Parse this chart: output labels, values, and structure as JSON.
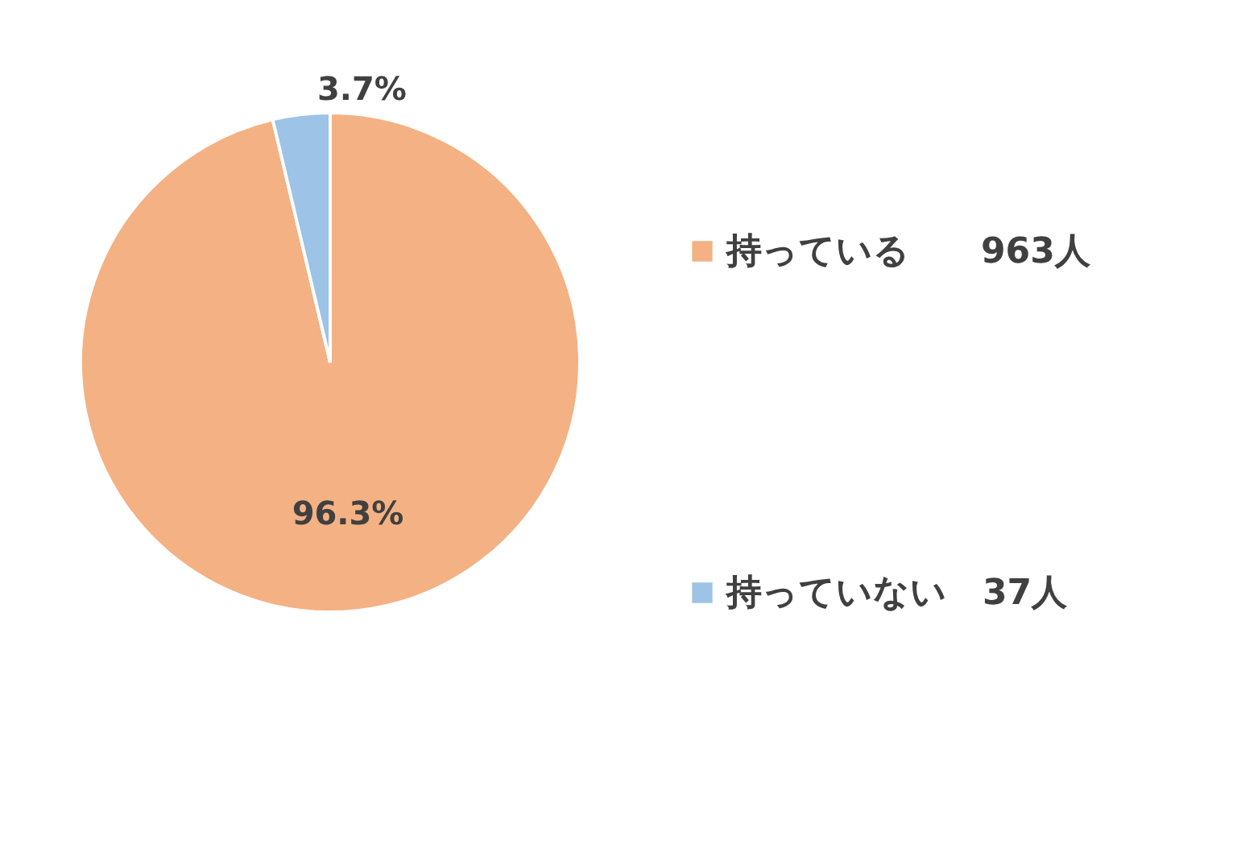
{
  "chart_data": {
    "type": "pie",
    "categories": [
      "持っている　　963人",
      "持っていない　37人"
    ],
    "values": [
      96.3,
      3.7
    ],
    "value_labels": [
      "96.3%",
      "3.7%"
    ],
    "colors": [
      "#f4b183",
      "#9dc3e6"
    ],
    "legend": "right"
  }
}
